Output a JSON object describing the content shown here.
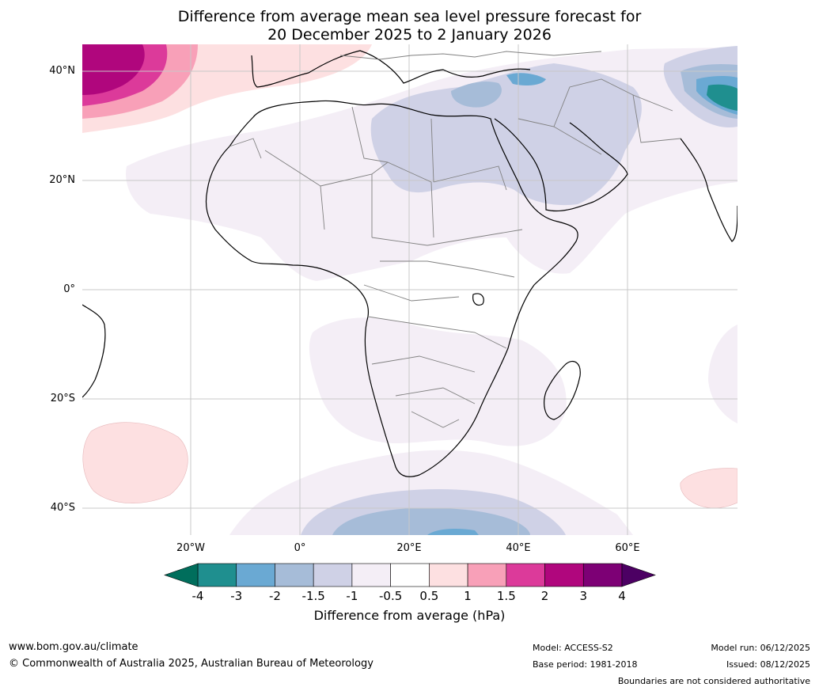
{
  "title": {
    "line1": "Difference from average mean sea level pressure forecast for",
    "line2": "20 December 2025 to 2 January 2026"
  },
  "axes": {
    "lat_labels": [
      "40°N",
      "20°N",
      "0°",
      "20°S",
      "40°S"
    ],
    "lon_labels": [
      "20°W",
      "0°",
      "20°E",
      "40°E",
      "60°E"
    ]
  },
  "colorbar": {
    "ticks": [
      "-4",
      "-3",
      "-2",
      "-1.5",
      "-1",
      "-0.5",
      "0.5",
      "1",
      "1.5",
      "2",
      "3",
      "4"
    ],
    "colors": [
      "#1f8f8f",
      "#6aa9d3",
      "#a6bcd8",
      "#cfd1e6",
      "#f4eef6",
      "#ffffff",
      "#fde0e1",
      "#f8a0b8",
      "#dc3a9a",
      "#b0067d",
      "#7d0075"
    ],
    "under_color": "#006e5c",
    "over_color": "#4c0063",
    "label": "Difference from average (hPa)"
  },
  "footer": {
    "website": "www.bom.gov.au/climate",
    "copyright": "© Commonwealth of Australia 2025, Australian Bureau of Meteorology",
    "model": "Model: ACCESS-S2",
    "base_period": "Base period: 1981-2018",
    "model_run": "Model run: 06/12/2025",
    "issued": "Issued: 08/12/2025",
    "disclaimer": "Boundaries are not considered authoritative"
  }
}
